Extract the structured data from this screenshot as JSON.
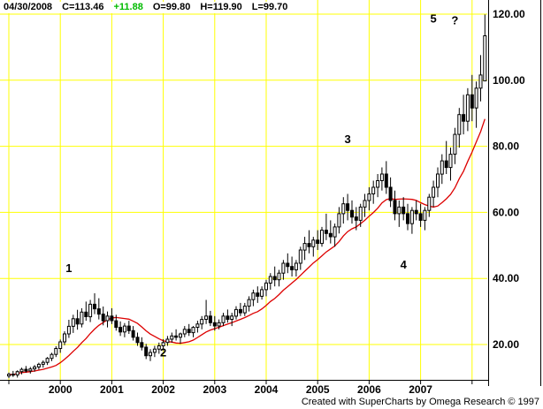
{
  "header": {
    "date": "04/30/2008",
    "close": "C=113.46",
    "change": "+11.88",
    "change_color": "#00bb00",
    "open": "O=99.80",
    "high": "H=119.90",
    "low": "L=99.70"
  },
  "footer": {
    "credit": "Created with SuperCharts by Omega Research © 1997"
  },
  "chart_data": {
    "type": "candlestick",
    "title": "",
    "xlabel": "",
    "ylabel": "",
    "x_unit": "month",
    "start": "1999-01",
    "end": "2008-04",
    "year_labels": [
      "2000",
      "2001",
      "2002",
      "2003",
      "2004",
      "2005",
      "2006",
      "2007"
    ],
    "y_ticks": [
      120,
      100,
      80,
      60,
      40,
      20
    ],
    "y_tick_labels": [
      "120.00",
      "100.00",
      "80.00",
      "60.00",
      "40.00",
      "20.00"
    ],
    "ylim": [
      9.3,
      124.3
    ],
    "grid": true,
    "legend": false,
    "colors": {
      "background": "#ffffff",
      "grid": "#ffff00",
      "bar": "#000000",
      "axis": "#000000",
      "ma": "#dd0000"
    },
    "overlay": {
      "type": "sma",
      "period": 12,
      "color": "#dd0000"
    },
    "annotations": [
      {
        "label": "1",
        "d": "2000-03",
        "price": 43
      },
      {
        "label": "2",
        "d": "2002-01",
        "price": 17.5
      },
      {
        "label": "3",
        "d": "2005-08",
        "price": 82
      },
      {
        "label": "4",
        "d": "2006-09",
        "price": 44
      },
      {
        "label": "5",
        "d": "2007-04",
        "price": 118.5
      },
      {
        "label": "?",
        "d": "2007-09",
        "price": 118
      }
    ],
    "bars": [
      [
        "1999-01",
        10.5,
        11.5,
        9.8,
        11.0
      ],
      [
        "1999-02",
        11.0,
        12.0,
        10.2,
        10.8
      ],
      [
        "1999-03",
        10.8,
        12.2,
        10.0,
        11.8
      ],
      [
        "1999-04",
        11.8,
        13.0,
        11.0,
        12.5
      ],
      [
        "1999-05",
        12.5,
        13.5,
        11.5,
        12.0
      ],
      [
        "1999-06",
        12.0,
        13.2,
        11.2,
        12.6
      ],
      [
        "1999-07",
        12.6,
        13.8,
        11.8,
        13.2
      ],
      [
        "1999-08",
        13.2,
        14.5,
        12.4,
        14.0
      ],
      [
        "1999-09",
        14.0,
        15.2,
        13.0,
        14.6
      ],
      [
        "1999-10",
        14.6,
        16.2,
        13.8,
        15.8
      ],
      [
        "1999-11",
        15.8,
        17.5,
        15.0,
        17.0
      ],
      [
        "1999-12",
        17.0,
        19.5,
        16.2,
        18.8
      ],
      [
        "2000-01",
        18.8,
        21.5,
        17.5,
        20.8
      ],
      [
        "2000-02",
        20.8,
        24.0,
        19.8,
        23.2
      ],
      [
        "2000-03",
        23.2,
        27.5,
        22.0,
        25.5
      ],
      [
        "2000-04",
        25.5,
        29.0,
        23.5,
        27.8
      ],
      [
        "2000-05",
        27.8,
        30.5,
        24.5,
        26.2
      ],
      [
        "2000-06",
        26.2,
        31.0,
        25.2,
        29.8
      ],
      [
        "2000-07",
        29.8,
        33.0,
        27.2,
        28.4
      ],
      [
        "2000-08",
        28.4,
        33.5,
        26.8,
        32.2
      ],
      [
        "2000-09",
        32.2,
        35.5,
        29.2,
        30.8
      ],
      [
        "2000-10",
        30.8,
        34.0,
        27.6,
        29.2
      ],
      [
        "2000-11",
        29.2,
        31.5,
        25.8,
        27.2
      ],
      [
        "2000-12",
        27.2,
        30.0,
        25.2,
        28.6
      ],
      [
        "2001-01",
        28.6,
        31.0,
        26.2,
        27.2
      ],
      [
        "2001-02",
        27.2,
        29.0,
        24.2,
        25.2
      ],
      [
        "2001-03",
        25.2,
        27.0,
        22.6,
        23.8
      ],
      [
        "2001-04",
        23.8,
        26.5,
        22.2,
        25.6
      ],
      [
        "2001-05",
        25.6,
        27.2,
        23.2,
        24.2
      ],
      [
        "2001-06",
        24.2,
        25.6,
        21.2,
        22.2
      ],
      [
        "2001-07",
        22.2,
        23.6,
        19.6,
        20.6
      ],
      [
        "2001-08",
        20.6,
        22.2,
        18.2,
        19.2
      ],
      [
        "2001-09",
        19.2,
        20.2,
        15.6,
        16.6
      ],
      [
        "2001-10",
        16.6,
        18.6,
        15.0,
        17.6
      ],
      [
        "2001-11",
        17.6,
        19.6,
        16.2,
        18.6
      ],
      [
        "2001-12",
        18.6,
        20.6,
        17.2,
        19.6
      ],
      [
        "2002-01",
        19.6,
        21.6,
        18.2,
        20.6
      ],
      [
        "2002-02",
        20.6,
        22.6,
        19.6,
        21.6
      ],
      [
        "2002-03",
        21.6,
        23.6,
        20.6,
        22.6
      ],
      [
        "2002-04",
        22.6,
        24.6,
        21.2,
        22.2
      ],
      [
        "2002-05",
        22.2,
        23.6,
        20.2,
        23.2
      ],
      [
        "2002-06",
        23.2,
        25.6,
        22.2,
        24.6
      ],
      [
        "2002-07",
        24.6,
        26.2,
        22.6,
        23.6
      ],
      [
        "2002-08",
        23.6,
        25.6,
        22.2,
        25.2
      ],
      [
        "2002-09",
        25.2,
        27.2,
        23.6,
        26.2
      ],
      [
        "2002-10",
        26.2,
        28.6,
        24.6,
        27.6
      ],
      [
        "2002-11",
        27.6,
        33.5,
        26.2,
        28.6
      ],
      [
        "2002-12",
        28.6,
        30.2,
        25.6,
        26.6
      ],
      [
        "2003-01",
        26.6,
        28.6,
        24.2,
        25.6
      ],
      [
        "2003-02",
        25.6,
        27.6,
        24.6,
        26.6
      ],
      [
        "2003-03",
        26.6,
        29.6,
        25.6,
        28.6
      ],
      [
        "2003-04",
        28.6,
        30.6,
        26.6,
        27.6
      ],
      [
        "2003-05",
        27.6,
        29.6,
        25.6,
        28.6
      ],
      [
        "2003-06",
        28.6,
        31.6,
        27.6,
        30.6
      ],
      [
        "2003-07",
        30.6,
        32.6,
        28.6,
        29.6
      ],
      [
        "2003-08",
        29.6,
        32.6,
        28.6,
        31.6
      ],
      [
        "2003-09",
        31.6,
        34.6,
        30.0,
        33.6
      ],
      [
        "2003-10",
        33.6,
        36.6,
        31.6,
        35.6
      ],
      [
        "2003-11",
        35.6,
        37.6,
        32.6,
        34.6
      ],
      [
        "2003-12",
        34.6,
        37.6,
        33.6,
        36.6
      ],
      [
        "2004-01",
        36.6,
        39.6,
        34.6,
        38.6
      ],
      [
        "2004-02",
        38.6,
        41.6,
        36.6,
        40.6
      ],
      [
        "2004-03",
        40.6,
        43.6,
        37.6,
        39.6
      ],
      [
        "2004-04",
        39.6,
        42.6,
        37.6,
        41.6
      ],
      [
        "2004-05",
        41.6,
        45.6,
        39.6,
        44.6
      ],
      [
        "2004-06",
        44.6,
        47.6,
        41.6,
        43.6
      ],
      [
        "2004-07",
        43.6,
        46.6,
        40.6,
        42.6
      ],
      [
        "2004-08",
        42.6,
        45.6,
        40.6,
        44.6
      ],
      [
        "2004-09",
        44.6,
        49.6,
        42.6,
        48.6
      ],
      [
        "2004-10",
        48.6,
        52.6,
        45.6,
        50.6
      ],
      [
        "2004-11",
        50.6,
        54.6,
        47.6,
        49.6
      ],
      [
        "2004-12",
        49.6,
        52.6,
        46.6,
        51.6
      ],
      [
        "2005-01",
        51.6,
        54.6,
        48.6,
        50.6
      ],
      [
        "2005-02",
        50.6,
        55.6,
        49.6,
        54.6
      ],
      [
        "2005-03",
        54.6,
        59.6,
        51.6,
        53.6
      ],
      [
        "2005-04",
        53.6,
        57.6,
        50.6,
        52.6
      ],
      [
        "2005-05",
        52.6,
        56.6,
        49.6,
        55.6
      ],
      [
        "2005-06",
        55.6,
        61.6,
        53.6,
        59.6
      ],
      [
        "2005-07",
        59.6,
        64.6,
        56.6,
        62.6
      ],
      [
        "2005-08",
        62.6,
        65.6,
        57.6,
        60.6
      ],
      [
        "2005-09",
        60.6,
        63.6,
        56.6,
        58.6
      ],
      [
        "2005-10",
        58.6,
        61.6,
        54.6,
        57.6
      ],
      [
        "2005-11",
        57.6,
        62.6,
        55.6,
        61.6
      ],
      [
        "2005-12",
        61.6,
        65.6,
        58.6,
        63.6
      ],
      [
        "2006-01",
        63.6,
        67.6,
        60.6,
        65.6
      ],
      [
        "2006-02",
        65.6,
        69.6,
        62.6,
        67.6
      ],
      [
        "2006-03",
        67.6,
        71.6,
        64.6,
        69.6
      ],
      [
        "2006-04",
        69.6,
        73.6,
        66.6,
        71.6
      ],
      [
        "2006-05",
        71.6,
        75.5,
        65.6,
        67.6
      ],
      [
        "2006-06",
        67.6,
        70.6,
        61.6,
        63.6
      ],
      [
        "2006-07",
        63.6,
        66.6,
        57.6,
        59.6
      ],
      [
        "2006-08",
        59.6,
        63.6,
        55.6,
        61.6
      ],
      [
        "2006-09",
        61.6,
        64.6,
        57.6,
        59.6
      ],
      [
        "2006-10",
        59.6,
        62.6,
        54.6,
        56.6
      ],
      [
        "2006-11",
        56.6,
        61.6,
        53.5,
        60.6
      ],
      [
        "2006-12",
        60.6,
        63.6,
        57.6,
        59.6
      ],
      [
        "2007-01",
        59.6,
        62.6,
        55.6,
        57.6
      ],
      [
        "2007-02",
        57.6,
        61.6,
        54.6,
        60.6
      ],
      [
        "2007-03",
        60.6,
        65.6,
        58.6,
        64.6
      ],
      [
        "2007-04",
        64.6,
        69.6,
        61.6,
        67.6
      ],
      [
        "2007-05",
        67.6,
        73.6,
        64.6,
        71.6
      ],
      [
        "2007-06",
        71.6,
        77.6,
        68.6,
        75.6
      ],
      [
        "2007-07",
        75.6,
        81.6,
        71.6,
        73.6
      ],
      [
        "2007-08",
        73.6,
        79.6,
        69.6,
        77.6
      ],
      [
        "2007-09",
        77.6,
        85.6,
        74.6,
        83.6
      ],
      [
        "2007-10",
        83.6,
        91.6,
        79.6,
        89.6
      ],
      [
        "2007-11",
        89.6,
        95.6,
        83.6,
        87.6
      ],
      [
        "2007-12",
        87.6,
        97.6,
        84.6,
        95.6
      ],
      [
        "2008-01",
        95.6,
        101.6,
        87.6,
        91.6
      ],
      [
        "2008-02",
        91.6,
        99.6,
        85.6,
        97.6
      ],
      [
        "2008-03",
        97.6,
        107.6,
        93.6,
        101.58
      ],
      [
        "2008-04",
        99.8,
        119.9,
        99.7,
        113.46
      ]
    ]
  }
}
